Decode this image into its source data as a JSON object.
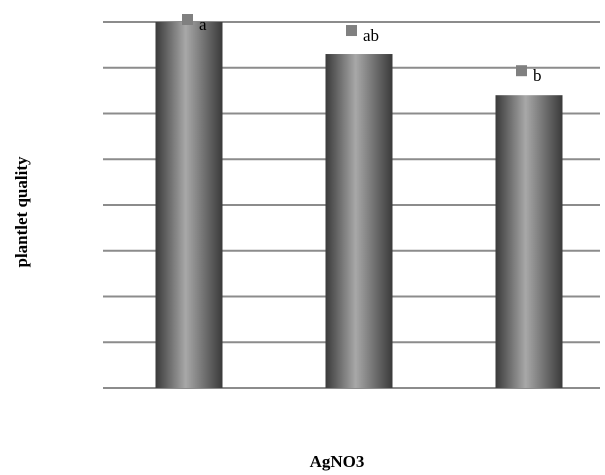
{
  "chart_data": {
    "type": "bar",
    "title": "",
    "xlabel": "AgNO3",
    "ylabel": "plantlet quality",
    "categories": [
      "",
      "",
      ""
    ],
    "values": [
      8,
      7.3,
      6.4
    ],
    "significance_letters": [
      "a",
      "ab",
      "b"
    ],
    "ylim": [
      0,
      8
    ],
    "gridlines": 8,
    "grid": true,
    "legend": "none",
    "bar_style": "cylindrical gray gradient",
    "colors": {
      "bar_dark": "#3a3a3a",
      "bar_light": "#a8a8a8",
      "grid": "#8c8c8c",
      "marker": "#808080"
    }
  }
}
